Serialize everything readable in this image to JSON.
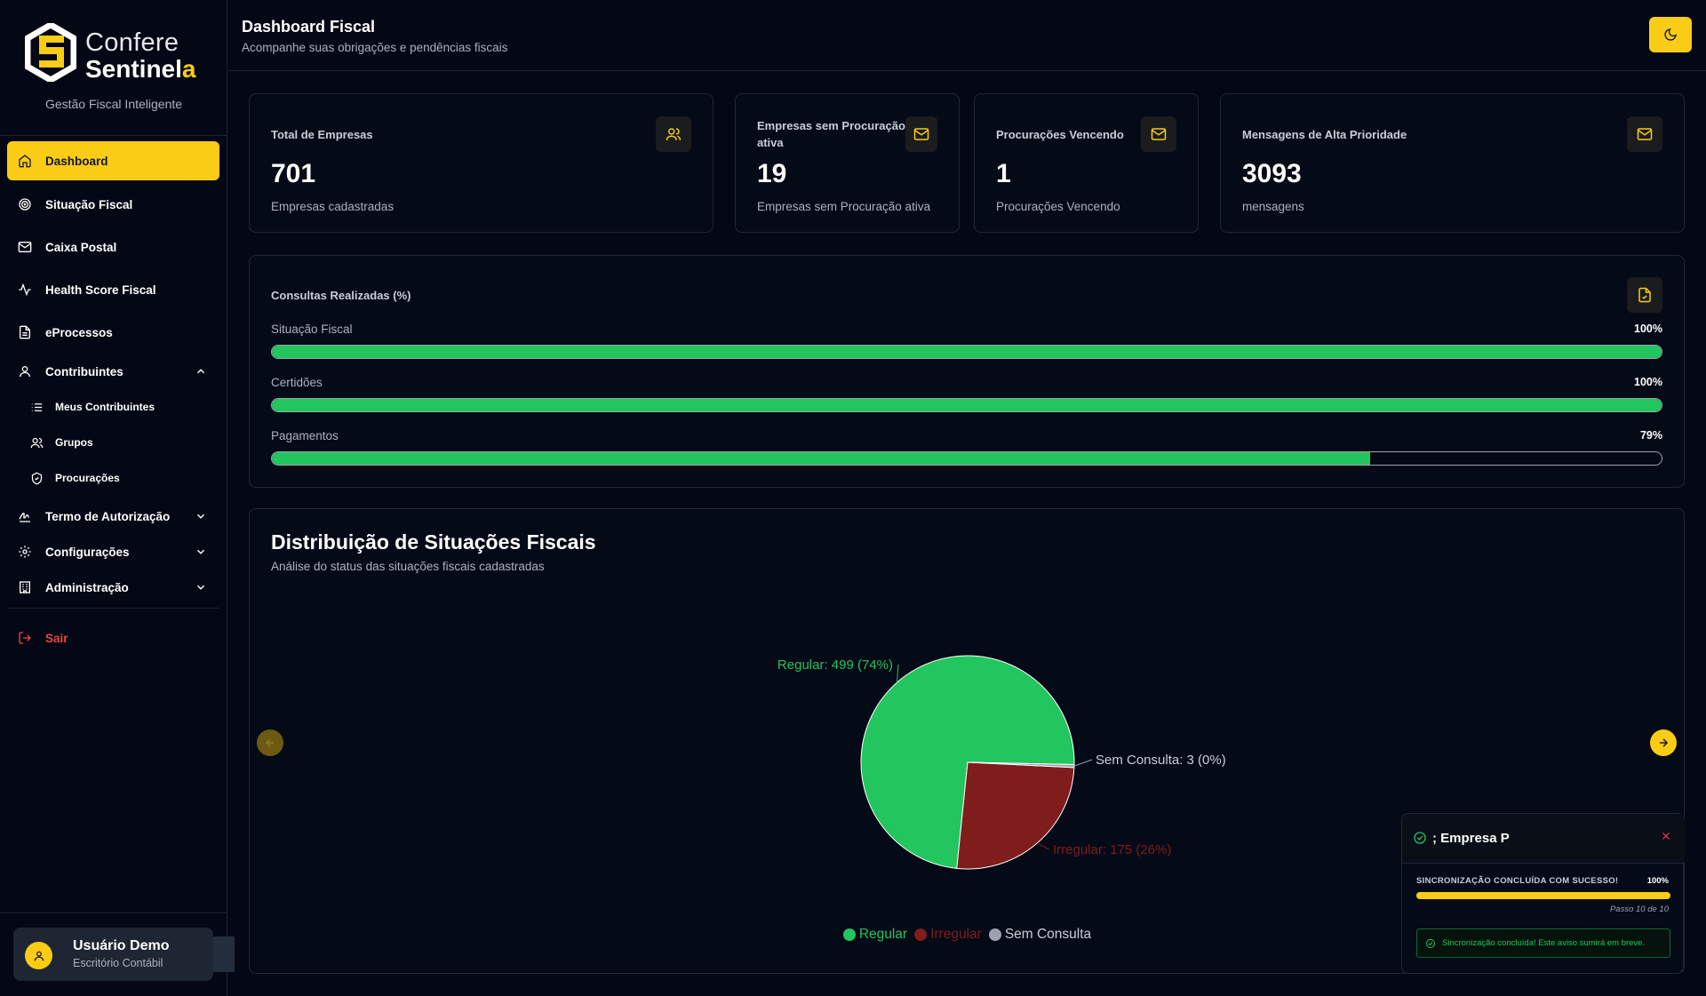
{
  "brand": {
    "line1": "Confere",
    "line2_part1": "Sentinel",
    "line2_part2": "a",
    "tagline": "Gestão Fiscal Inteligente"
  },
  "nav": {
    "dashboard": "Dashboard",
    "situacao_fiscal": "Situação Fiscal",
    "caixa_postal": "Caixa Postal",
    "health_score": "Health Score Fiscal",
    "eprocessos": "eProcessos",
    "contribuintes": "Contribuintes",
    "meus_contribuintes": "Meus Contribuintes",
    "grupos": "Grupos",
    "procuracoes": "Procurações",
    "termo": "Termo de Autorização",
    "configuracoes": "Configurações",
    "administracao": "Administração",
    "sair": "Sair"
  },
  "user": {
    "name": "Usuário Demo",
    "role": "Escritório Contábil"
  },
  "header": {
    "title": "Dashboard Fiscal",
    "subtitle": "Acompanhe suas obrigações e pendências fiscais"
  },
  "stats": [
    {
      "label": "Total de Empresas",
      "value": "701",
      "desc": "Empresas cadastradas",
      "icon": "users-icon"
    },
    {
      "label": "Empresas sem Procuração ativa",
      "value": "19",
      "desc": "Empresas sem Procuração ativa",
      "icon": "mail-icon"
    },
    {
      "label": "Procurações Vencendo",
      "value": "1",
      "desc": "Procurações Vencendo",
      "icon": "mail-icon"
    },
    {
      "label": "Mensagens de Alta Prioridade",
      "value": "3093",
      "desc": "mensagens",
      "icon": "mail-icon"
    }
  ],
  "consultas": {
    "title": "Consultas Realizadas (%)",
    "items": [
      {
        "label": "Situação Fiscal",
        "pct_text": "100%",
        "value": 100
      },
      {
        "label": "Certidões",
        "pct_text": "100%",
        "value": 100
      },
      {
        "label": "Pagamentos",
        "pct_text": "79%",
        "value": 79
      }
    ]
  },
  "distribution": {
    "title": "Distribuição de Situações Fiscais",
    "subtitle": "Análise do status das situações fiscais cadastradas",
    "slice_labels": [
      "Regular: 499 (74%)",
      "Irregular: 175 (26%)",
      "Sem Consulta: 3 (0%)"
    ],
    "legend": [
      "Regular",
      "Irregular",
      "Sem Consulta"
    ]
  },
  "chart_data": {
    "type": "pie",
    "title": "Distribuição de Situações Fiscais",
    "categories": [
      "Regular",
      "Irregular",
      "Sem Consulta"
    ],
    "values": [
      499,
      175,
      3
    ],
    "percentages": [
      74,
      26,
      0
    ],
    "colors": [
      "#22c55e",
      "#7f1d1d",
      "#9ca3af"
    ],
    "legend_position": "bottom"
  },
  "toast": {
    "title": "; Empresa P",
    "step_label": "SINCRONIZAÇÃO CONCLUÍDA COM SUCESSO!",
    "pct": "100%",
    "progress": 100,
    "step": "Passo 10 de 10",
    "message": "Sincronização concluída! Este aviso sumirá em breve."
  },
  "colors": {
    "accent": "#facc15",
    "success": "#22c55e",
    "danger": "#ef4444",
    "background": "#040814"
  }
}
